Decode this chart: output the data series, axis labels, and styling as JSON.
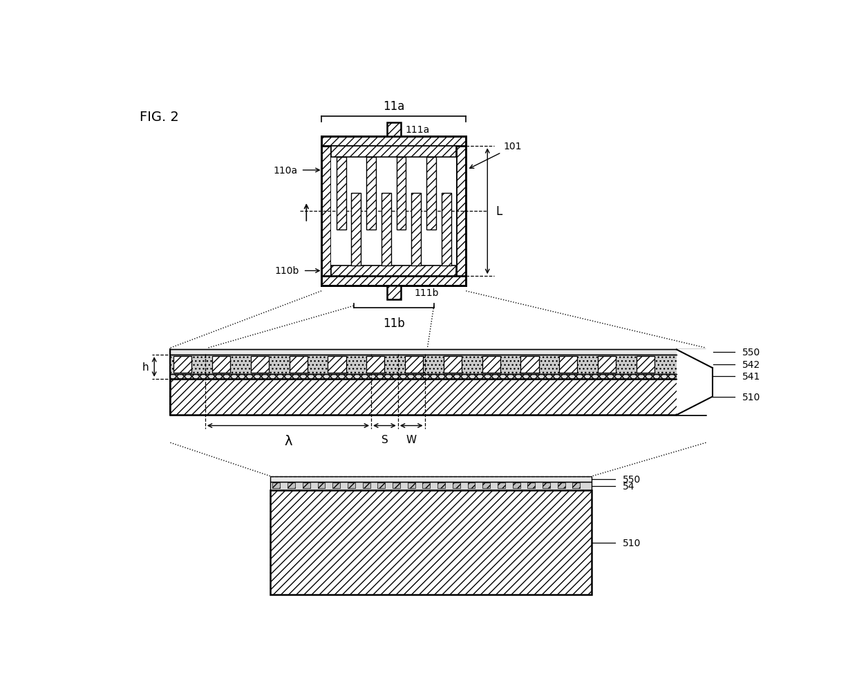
{
  "bg_color": "#ffffff",
  "labels": {
    "fig": "FIG. 2",
    "11a": "11a",
    "11b": "11b",
    "111a": "111a",
    "111b": "111b",
    "110a": "110a",
    "110b": "110b",
    "101": "101",
    "L": "L",
    "lambda": "λ",
    "S": "S",
    "W": "W",
    "h": "h",
    "550_1": "550",
    "542": "542",
    "541": "541",
    "510_1": "510",
    "550_2": "550",
    "54": "54",
    "510_2": "510"
  }
}
